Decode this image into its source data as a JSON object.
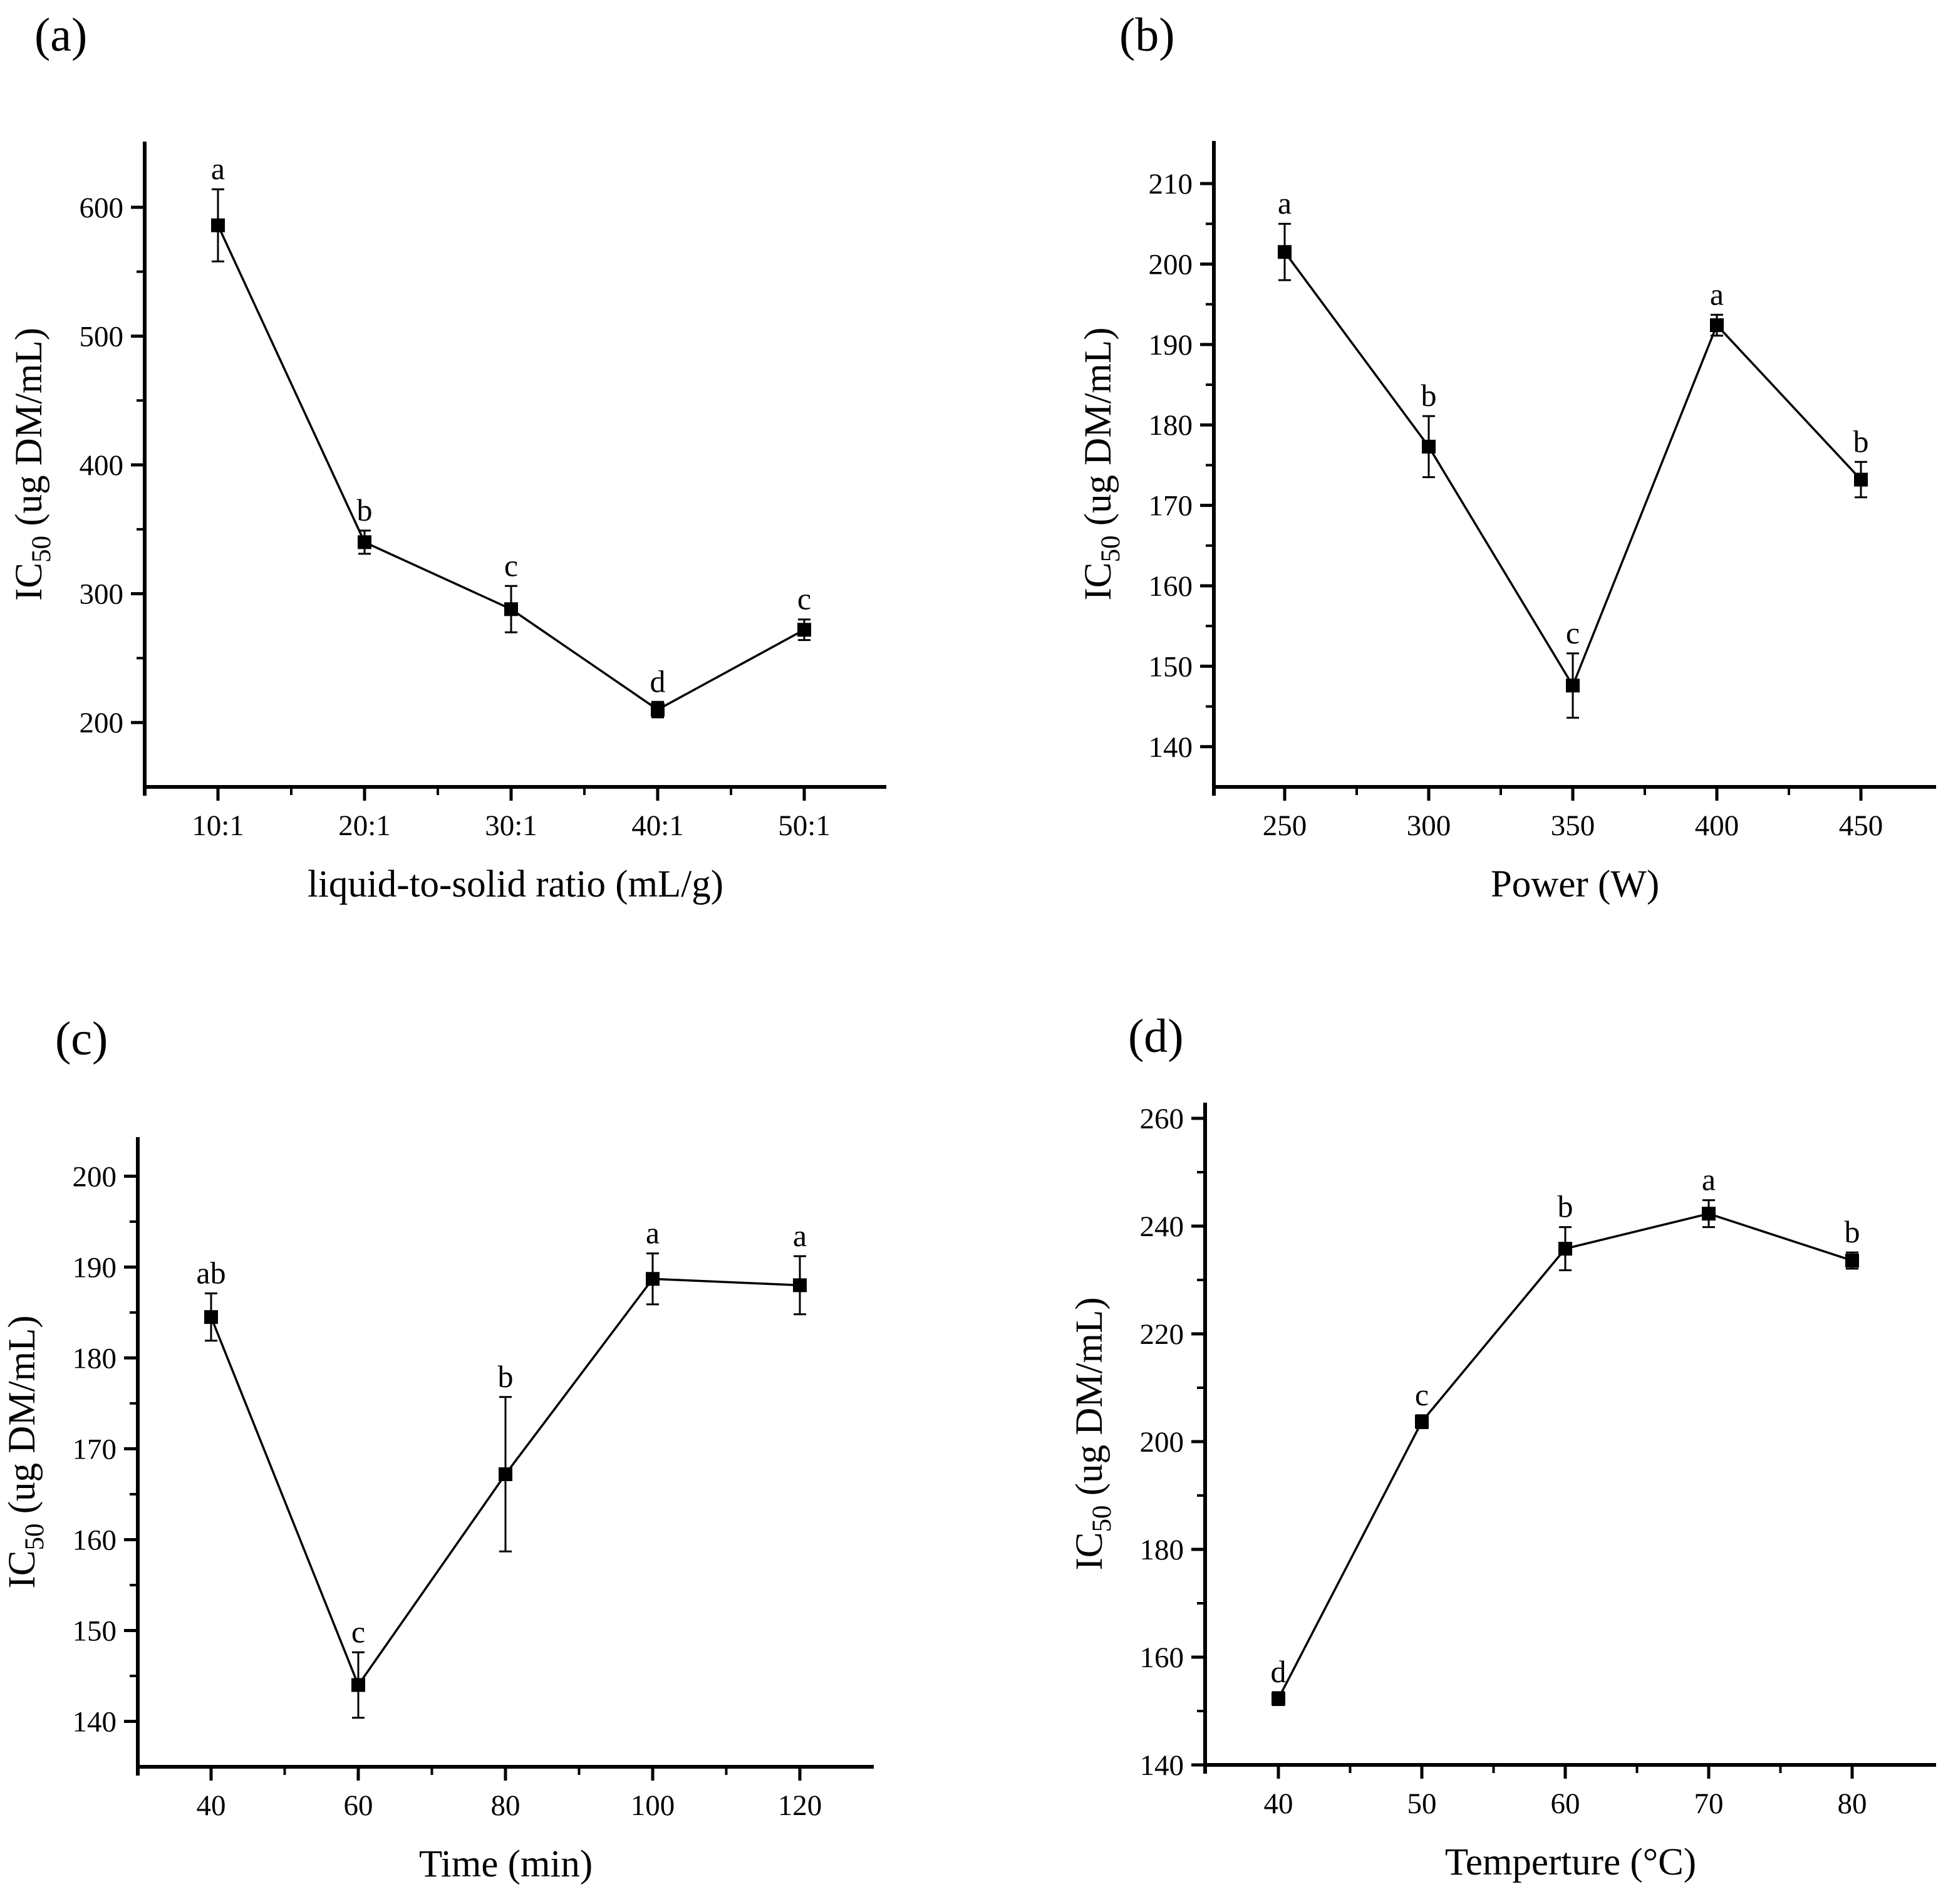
{
  "figure": {
    "background_color": "#ffffff",
    "ink_color": "#000000",
    "ylabel_parts": {
      "prefix": "IC",
      "sub": "50",
      "suffix": " (ug DM/mL)"
    }
  },
  "chart_data": [
    {
      "type": "line",
      "panel_label": "(a)",
      "xlabel": "liquid-to-solid ratio (mL/g)",
      "ylabel": "IC50 (ug DM/mL)",
      "categories": [
        "10:1",
        "20:1",
        "30:1",
        "40:1",
        "50:1"
      ],
      "values": [
        586,
        340,
        288,
        210,
        272
      ],
      "error_bars": [
        28,
        9,
        18,
        6,
        8
      ],
      "sig_letters": [
        "a",
        "b",
        "c",
        "d",
        "c"
      ],
      "ylim": [
        150,
        651
      ],
      "y_major_ticks": [
        200,
        300,
        400,
        500,
        600
      ],
      "y_minor_ticks": [
        250,
        350,
        450,
        550
      ],
      "marker": "filled-square",
      "grid": false,
      "legend": "none"
    },
    {
      "type": "line",
      "panel_label": "(b)",
      "xlabel": "Power (W)",
      "ylabel": "IC50 (ug DM/mL)",
      "categories": [
        "250",
        "300",
        "350",
        "400",
        "450"
      ],
      "values": [
        201.5,
        177.3,
        147.6,
        192.4,
        173.2
      ],
      "error_bars": [
        3.5,
        3.8,
        4.0,
        1.3,
        2.2
      ],
      "sig_letters": [
        "a",
        "b",
        "c",
        "a",
        "b"
      ],
      "ylim": [
        135,
        215.3
      ],
      "y_major_ticks": [
        140,
        150,
        160,
        170,
        180,
        190,
        200,
        210
      ],
      "y_minor_ticks": [
        145,
        155,
        165,
        175,
        185,
        195,
        205
      ],
      "marker": "filled-square",
      "grid": false,
      "legend": "none"
    },
    {
      "type": "line",
      "panel_label": "(c)",
      "xlabel": "Time (min)",
      "ylabel": "IC50 (ug DM/mL)",
      "categories": [
        "40",
        "60",
        "80",
        "100",
        "120"
      ],
      "values": [
        184.5,
        144.0,
        167.2,
        188.7,
        188.0
      ],
      "error_bars": [
        2.6,
        3.6,
        8.5,
        2.8,
        3.2
      ],
      "sig_letters": [
        "ab",
        "c",
        "b",
        "a",
        "a"
      ],
      "ylim": [
        135,
        204.3
      ],
      "y_major_ticks": [
        140,
        150,
        160,
        170,
        180,
        190,
        200
      ],
      "y_minor_ticks": [
        145,
        155,
        165,
        175,
        185,
        195
      ],
      "marker": "filled-square",
      "grid": false,
      "legend": "none"
    },
    {
      "type": "line",
      "panel_label": "(d)",
      "xlabel": "Temperture (°C)",
      "ylabel": "IC50 (ug DM/mL)",
      "categories": [
        "40",
        "50",
        "60",
        "70",
        "80"
      ],
      "values": [
        152.3,
        203.7,
        235.8,
        242.3,
        233.6
      ],
      "error_bars": [
        1.2,
        1.2,
        4.0,
        2.5,
        1.5
      ],
      "sig_letters": [
        "d",
        "c",
        "b",
        "a",
        "b"
      ],
      "ylim": [
        140,
        262.9
      ],
      "y_major_ticks": [
        140,
        160,
        180,
        200,
        220,
        240,
        260
      ],
      "y_minor_ticks": [
        150,
        170,
        190,
        210,
        230,
        250
      ],
      "marker": "filled-square",
      "grid": false,
      "legend": "none"
    }
  ]
}
